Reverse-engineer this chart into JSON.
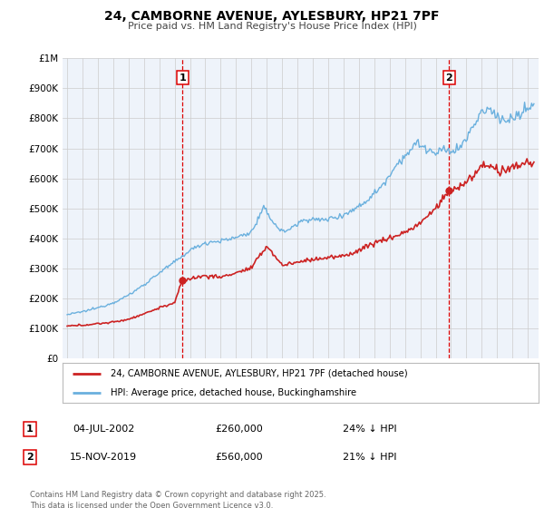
{
  "title_line1": "24, CAMBORNE AVENUE, AYLESBURY, HP21 7PF",
  "title_line2": "Price paid vs. HM Land Registry's House Price Index (HPI)",
  "ylim": [
    0,
    1000000
  ],
  "ytick_labels": [
    "£0",
    "£100K",
    "£200K",
    "£300K",
    "£400K",
    "£500K",
    "£600K",
    "£700K",
    "£800K",
    "£900K",
    "£1M"
  ],
  "ytick_values": [
    0,
    100000,
    200000,
    300000,
    400000,
    500000,
    600000,
    700000,
    800000,
    900000,
    1000000
  ],
  "hpi_color": "#6ab0de",
  "price_color": "#cc2222",
  "vline_color": "#dd0000",
  "plot_bg_color": "#eef3fa",
  "grid_color": "#cccccc",
  "sale1_date_num": 2002.51,
  "sale1_price": 260000,
  "sale1_label": "1",
  "sale2_date_num": 2019.88,
  "sale2_price": 560000,
  "sale2_label": "2",
  "legend_line1": "24, CAMBORNE AVENUE, AYLESBURY, HP21 7PF (detached house)",
  "legend_line2": "HPI: Average price, detached house, Buckinghamshire",
  "annotation1_label": "1",
  "annotation1_date": "04-JUL-2002",
  "annotation1_price": "£260,000",
  "annotation1_hpi": "24% ↓ HPI",
  "annotation2_label": "2",
  "annotation2_date": "15-NOV-2019",
  "annotation2_price": "£560,000",
  "annotation2_hpi": "21% ↓ HPI",
  "footer": "Contains HM Land Registry data © Crown copyright and database right 2025.\nThis data is licensed under the Open Government Licence v3.0."
}
